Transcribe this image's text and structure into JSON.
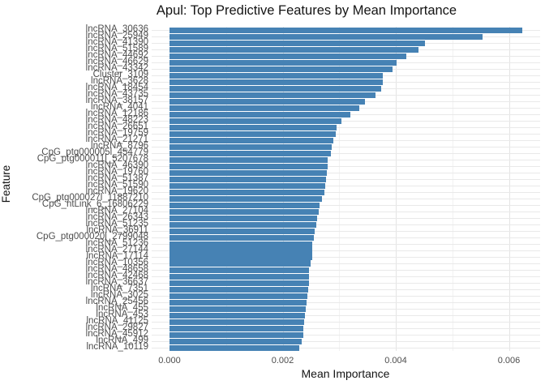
{
  "title": "Apul: Top Predictive Features by Mean Importance",
  "chart_data": {
    "type": "bar",
    "orientation": "horizontal",
    "title": "Apul: Top Predictive Features by Mean Importance",
    "xlabel": "Mean Importance",
    "ylabel": "Feature",
    "x_tick_labels": [
      "0.000",
      "0.002",
      "0.004",
      "0.006"
    ],
    "x_tick_values": [
      0.0,
      0.002,
      0.004,
      0.006
    ],
    "xlim": [
      -0.00031,
      0.006541
    ],
    "bar_color": "#4682B4",
    "grid": "on",
    "legend": "none",
    "categories": [
      "lncRNA_30636",
      "lncRNA_25949",
      "lncRNA_41390",
      "lncRNA_51589",
      "lncRNA_44692",
      "lncRNA_46629",
      "lncRNA_43342",
      "Cluster_3109",
      "lncRNA_3628",
      "lncRNA_18454",
      "lncRNA_43735",
      "lncRNA_38157",
      "lncRNA_4041",
      "lncRNA_12186",
      "lncRNA_48223",
      "lncRNA_26651",
      "lncRNA_19759",
      "lncRNA_21271",
      "lncRNA_8796",
      "CpG_ptg000005l_454779",
      "CpG_ptg000011l_5207678",
      "lncRNA_46390",
      "lncRNA_19760",
      "lncRNA_51387",
      "lncRNA_51590",
      "lncRNA_19620",
      "CpG_ptg000027l_11887210",
      "CpG_ntLink_6_16806229",
      "lncRNA_27104",
      "lncRNA_26343",
      "lncRNA_51235",
      "lncRNA_36911",
      "CpG_ptg000020l_2799048",
      "lncRNA_51236",
      "lncRNA_27144",
      "lncRNA_17114",
      "lncRNA_10356",
      "lncRNA_48658",
      "lncRNA_42468",
      "lncRNA_36637",
      "lncRNA_7351",
      "lncRNA_3025",
      "lncRNA_25456",
      "lncRNA_455",
      "lncRNA_453",
      "lncRNA_41125",
      "lncRNA_29827",
      "lncRNA_45912",
      "lncRNA_499",
      "lncRNA_10119"
    ],
    "values": [
      0.00623,
      0.00553,
      0.00451,
      0.0044,
      0.00418,
      0.00402,
      0.00394,
      0.00377,
      0.00377,
      0.00374,
      0.00364,
      0.00345,
      0.00335,
      0.00319,
      0.00304,
      0.00295,
      0.00294,
      0.00289,
      0.00287,
      0.00286,
      0.0028,
      0.00279,
      0.00278,
      0.00276,
      0.00275,
      0.00274,
      0.00269,
      0.00265,
      0.00264,
      0.00261,
      0.00259,
      0.00256,
      0.00255,
      0.00253,
      0.00252,
      0.00252,
      0.00249,
      0.00247,
      0.00246,
      0.00246,
      0.00245,
      0.00244,
      0.00242,
      0.00241,
      0.0024,
      0.00238,
      0.00237,
      0.00236,
      0.00233,
      0.0023
    ]
  }
}
